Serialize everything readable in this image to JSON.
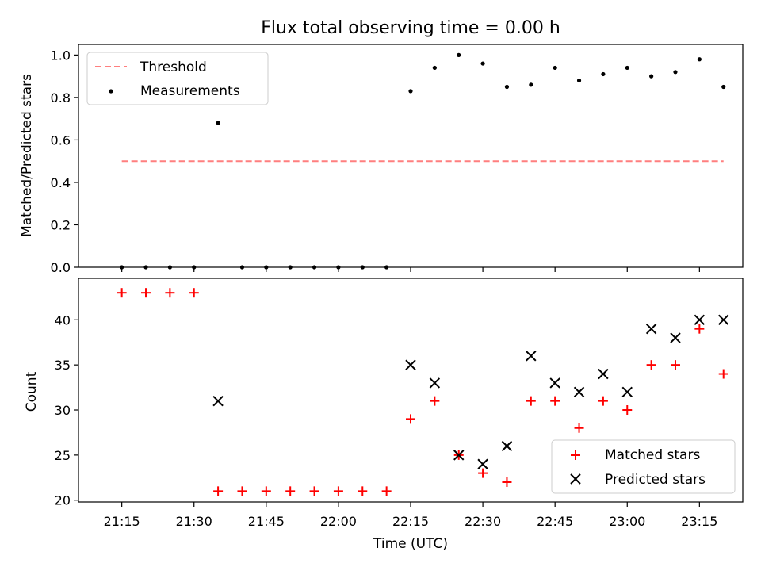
{
  "chart_data": [
    {
      "type": "scatter",
      "title": "Flux total observing time = 0.00 h",
      "xlabel": "",
      "ylabel": "Matched/Predicted stars",
      "ylim": [
        0,
        1.05
      ],
      "yticks": [
        "0.0",
        "0.2",
        "0.4",
        "0.6",
        "0.8",
        "1.0"
      ],
      "grid": false,
      "legend_loc": "upper-left",
      "threshold": {
        "name": "Threshold",
        "value": 0.5,
        "x_range": [
          "21:15",
          "23:20"
        ],
        "color": "#ff7f7f",
        "style": "dashed"
      },
      "series": [
        {
          "name": "Measurements",
          "marker": "dot",
          "color": "#000000",
          "x": [
            "21:15",
            "21:20",
            "21:25",
            "21:30",
            "21:35",
            "21:40",
            "21:45",
            "21:50",
            "21:55",
            "22:00",
            "22:05",
            "22:10",
            "22:15",
            "22:20",
            "22:25",
            "22:30",
            "22:35",
            "22:40",
            "22:45",
            "22:50",
            "22:55",
            "23:00",
            "23:05",
            "23:10",
            "23:15",
            "23:20"
          ],
          "values": [
            0.0,
            0.0,
            0.0,
            0.0,
            0.68,
            0.0,
            0.0,
            0.0,
            0.0,
            0.0,
            0.0,
            0.0,
            0.83,
            0.94,
            1.0,
            0.96,
            0.85,
            0.86,
            0.94,
            0.88,
            0.91,
            0.94,
            0.9,
            0.92,
            0.98,
            0.85
          ]
        }
      ]
    },
    {
      "type": "scatter",
      "title": "",
      "xlabel": "Time (UTC)",
      "ylabel": "Count",
      "ylim": [
        19.8,
        44.6
      ],
      "yticks": [
        "20",
        "25",
        "30",
        "35",
        "40"
      ],
      "xticks": [
        "21:15",
        "21:30",
        "21:45",
        "22:00",
        "22:15",
        "22:30",
        "22:45",
        "23:00",
        "23:15"
      ],
      "xlim": [
        "21:06",
        "23:24"
      ],
      "grid": false,
      "legend_loc": "lower-right",
      "series": [
        {
          "name": "Matched stars",
          "marker": "plus",
          "color": "#ff0000",
          "x": [
            "21:15",
            "21:20",
            "21:25",
            "21:30",
            "21:35",
            "21:40",
            "21:45",
            "21:50",
            "21:55",
            "22:00",
            "22:05",
            "22:10",
            "22:15",
            "22:20",
            "22:25",
            "22:30",
            "22:35",
            "22:40",
            "22:45",
            "22:50",
            "22:55",
            "23:00",
            "23:05",
            "23:10",
            "23:15",
            "23:20"
          ],
          "values": [
            43,
            43,
            43,
            43,
            21,
            21,
            21,
            21,
            21,
            21,
            21,
            21,
            29,
            31,
            25,
            23,
            22,
            31,
            31,
            28,
            31,
            30,
            35,
            35,
            39,
            34
          ]
        },
        {
          "name": "Predicted stars",
          "marker": "x",
          "color": "#000000",
          "x": [
            "21:35",
            "22:15",
            "22:20",
            "22:25",
            "22:30",
            "22:35",
            "22:40",
            "22:45",
            "22:50",
            "22:55",
            "23:00",
            "23:05",
            "23:10",
            "23:15",
            "23:20"
          ],
          "values": [
            31,
            35,
            33,
            25,
            24,
            26,
            36,
            33,
            32,
            34,
            32,
            39,
            38,
            40,
            40
          ]
        }
      ]
    }
  ]
}
